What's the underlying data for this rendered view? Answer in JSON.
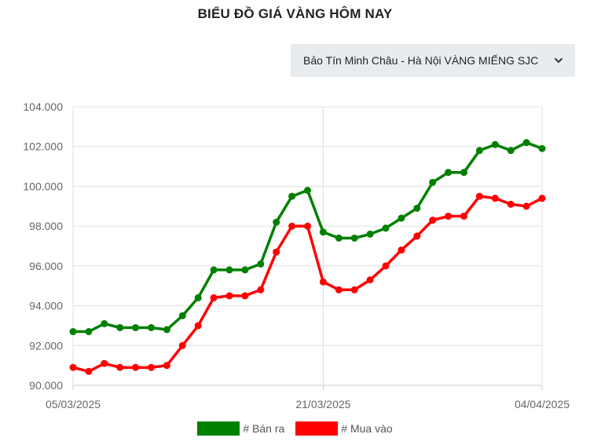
{
  "page": {
    "title": "BIỂU ĐỒ GIÁ VÀNG HÔM NAY",
    "dropdown": {
      "selected": "Bảo Tín Minh Châu - Hà Nội VÀNG MIẾNG SJC",
      "icon": "chevron-down-icon"
    }
  },
  "chart_data": {
    "type": "line",
    "title": "",
    "xlabel": "",
    "ylabel": "",
    "ylim": [
      90000,
      104000
    ],
    "yticks": [
      "104.000",
      "102.000",
      "100.000",
      "98.000",
      "96.000",
      "94.000",
      "92.000",
      "90.000"
    ],
    "ytick_values": [
      104000,
      102000,
      100000,
      98000,
      96000,
      94000,
      92000,
      90000
    ],
    "xtick_labels": [
      "05/03/2025",
      "21/03/2025",
      "04/04/2025"
    ],
    "xtick_indices": [
      0,
      16,
      30
    ],
    "grid": true,
    "legend_position": "bottom",
    "series": [
      {
        "name": "# Bán ra",
        "color": "#008000",
        "values": [
          92700,
          92700,
          93100,
          92900,
          92900,
          92900,
          92800,
          93500,
          94400,
          95800,
          95800,
          95800,
          96100,
          98200,
          99500,
          99800,
          97700,
          97400,
          97400,
          97600,
          97900,
          98400,
          98900,
          100200,
          100700,
          100700,
          101800,
          102100,
          101800,
          102200,
          101900
        ]
      },
      {
        "name": "# Mua vào",
        "color": "#ff0000",
        "values": [
          90900,
          90700,
          91100,
          90900,
          90900,
          90900,
          91000,
          92000,
          93000,
          94400,
          94500,
          94500,
          94800,
          96700,
          98000,
          98000,
          95200,
          94800,
          94800,
          95300,
          96000,
          96800,
          97500,
          98300,
          98500,
          98500,
          99500,
          99400,
          99100,
          99000,
          99400
        ]
      }
    ]
  }
}
